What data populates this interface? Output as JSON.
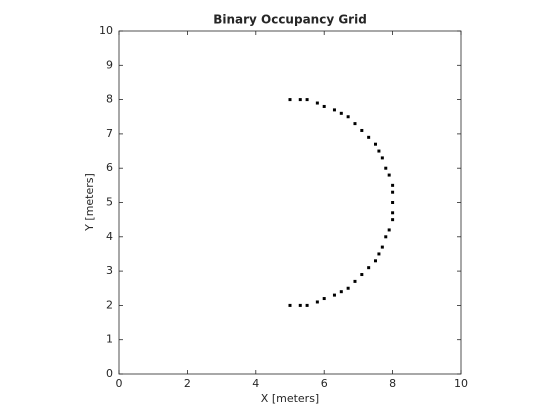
{
  "chart_data": {
    "type": "scatter",
    "title": "Binary Occupancy Grid",
    "xlabel": "X [meters]",
    "ylabel": "Y [meters]",
    "x": [
      5.0,
      5.3,
      5.5,
      5.8,
      6.0,
      6.3,
      6.5,
      6.7,
      6.9,
      7.1,
      7.3,
      7.5,
      7.6,
      7.7,
      7.8,
      7.9,
      8.0,
      8.0,
      8.0,
      8.0,
      8.0,
      7.9,
      7.8,
      7.7,
      7.6,
      7.5,
      7.3,
      7.1,
      6.9,
      6.7,
      6.5,
      6.3,
      6.0,
      5.8,
      5.5,
      5.3,
      5.0
    ],
    "y": [
      8.0,
      8.0,
      8.0,
      7.9,
      7.8,
      7.7,
      7.6,
      7.5,
      7.3,
      7.1,
      6.9,
      6.7,
      6.5,
      6.3,
      6.0,
      5.8,
      5.5,
      5.3,
      5.0,
      4.7,
      4.5,
      4.2,
      4.0,
      3.7,
      3.5,
      3.3,
      3.1,
      2.9,
      2.7,
      2.5,
      2.4,
      2.3,
      2.2,
      2.1,
      2.0,
      2.0,
      2.0
    ],
    "color": "#000000",
    "xlim": [
      0,
      10
    ],
    "ylim": [
      0,
      10
    ],
    "xticks": [
      0,
      2,
      4,
      6,
      8,
      10
    ],
    "yticks": [
      0,
      1,
      2,
      3,
      4,
      5,
      6,
      7,
      8,
      9,
      10
    ],
    "grid": false
  }
}
